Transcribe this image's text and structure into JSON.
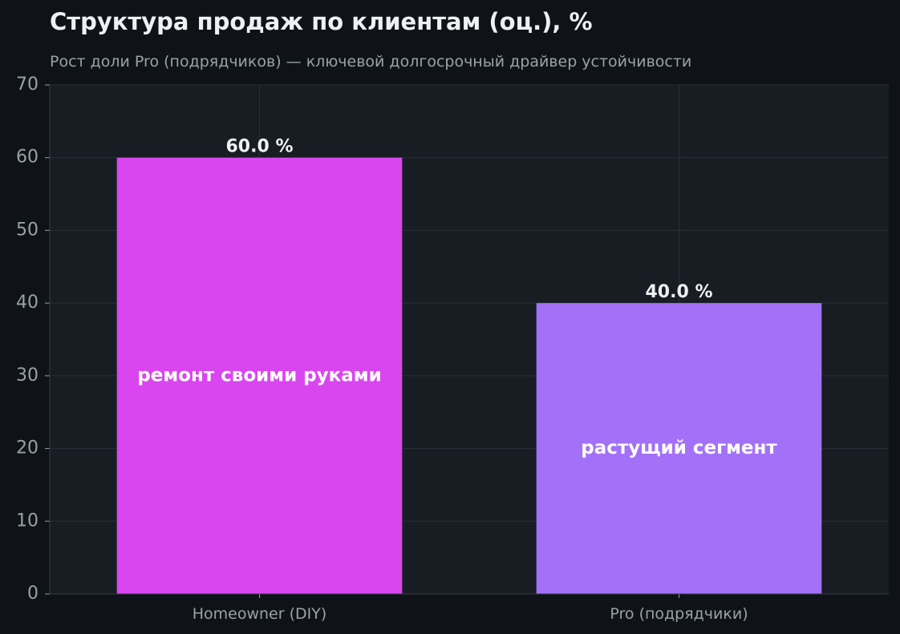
{
  "chart_data": {
    "type": "bar",
    "title": "Структура продаж по клиентам (оц.), %",
    "subtitle": "Рост доли Pro (подрядчиков) — ключевой долгосрочный драйвер устойчивости",
    "categories": [
      "Homeowner (DIY)",
      "Pro (подрядчики)"
    ],
    "values": [
      60.0,
      40.0
    ],
    "value_labels": [
      "60.0 %",
      "40.0 %"
    ],
    "bar_annotations": [
      "ремонт своими руками",
      "растущий сегмент"
    ],
    "bar_colors": [
      "#d946ef",
      "#a371f7"
    ],
    "ylim": [
      0,
      70
    ],
    "yticks": [
      0,
      10,
      20,
      30,
      40,
      50,
      60,
      70
    ],
    "xlabel": "",
    "ylabel": "",
    "grid": true
  },
  "colors": {
    "page_background": "#0f1317",
    "plot_background": "#181c23",
    "grid": "#2a2f37",
    "text": "#eef0f3",
    "muted_text": "#9aa1aa"
  }
}
